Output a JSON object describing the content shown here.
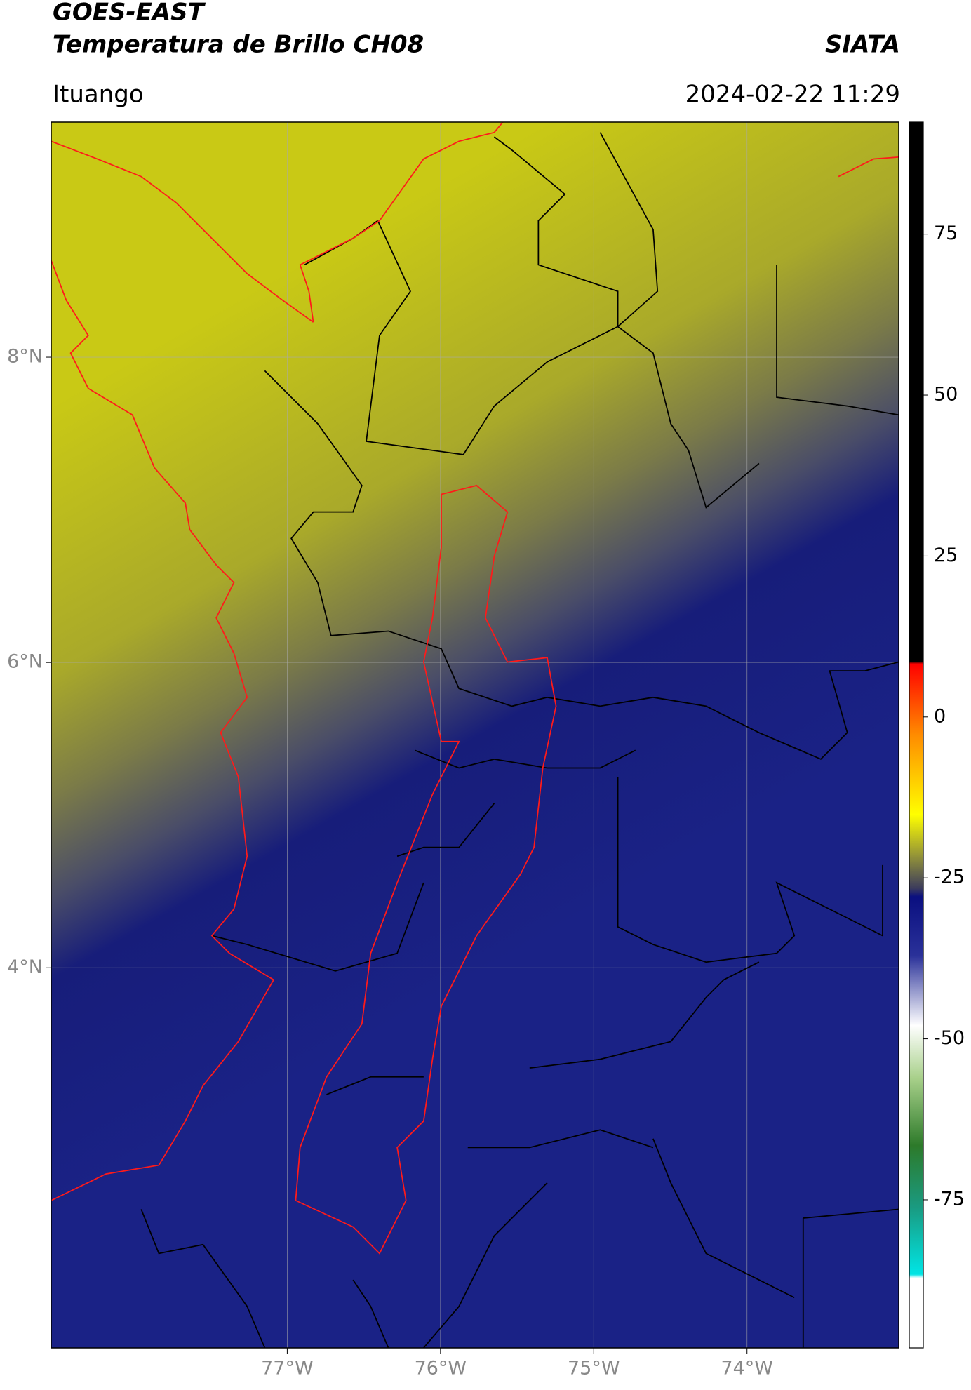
{
  "header": {
    "title": "GOES-EAST",
    "subtitle": "Temperatura de Brillo CH08",
    "source": "SIATA",
    "location": "Ituango",
    "datetime": "2024-02-22 11:29"
  },
  "map": {
    "xlim": [
      -78.54,
      -73.01
    ],
    "ylim": [
      1.51,
      9.54
    ],
    "xticks": [
      {
        "value": -77,
        "label": "77°W"
      },
      {
        "value": -76,
        "label": "76°W"
      },
      {
        "value": -75,
        "label": "75°W"
      },
      {
        "value": -74,
        "label": "74°W"
      }
    ],
    "yticks": [
      {
        "value": 8,
        "label": "8°N"
      },
      {
        "value": 6,
        "label": "6°N"
      },
      {
        "value": 4,
        "label": "4°N"
      }
    ],
    "grid": true
  },
  "colorbar": {
    "vlim": [
      -98,
      92.4
    ],
    "ticks": [
      75,
      50,
      25,
      0,
      -25,
      -50,
      -75
    ]
  }
}
